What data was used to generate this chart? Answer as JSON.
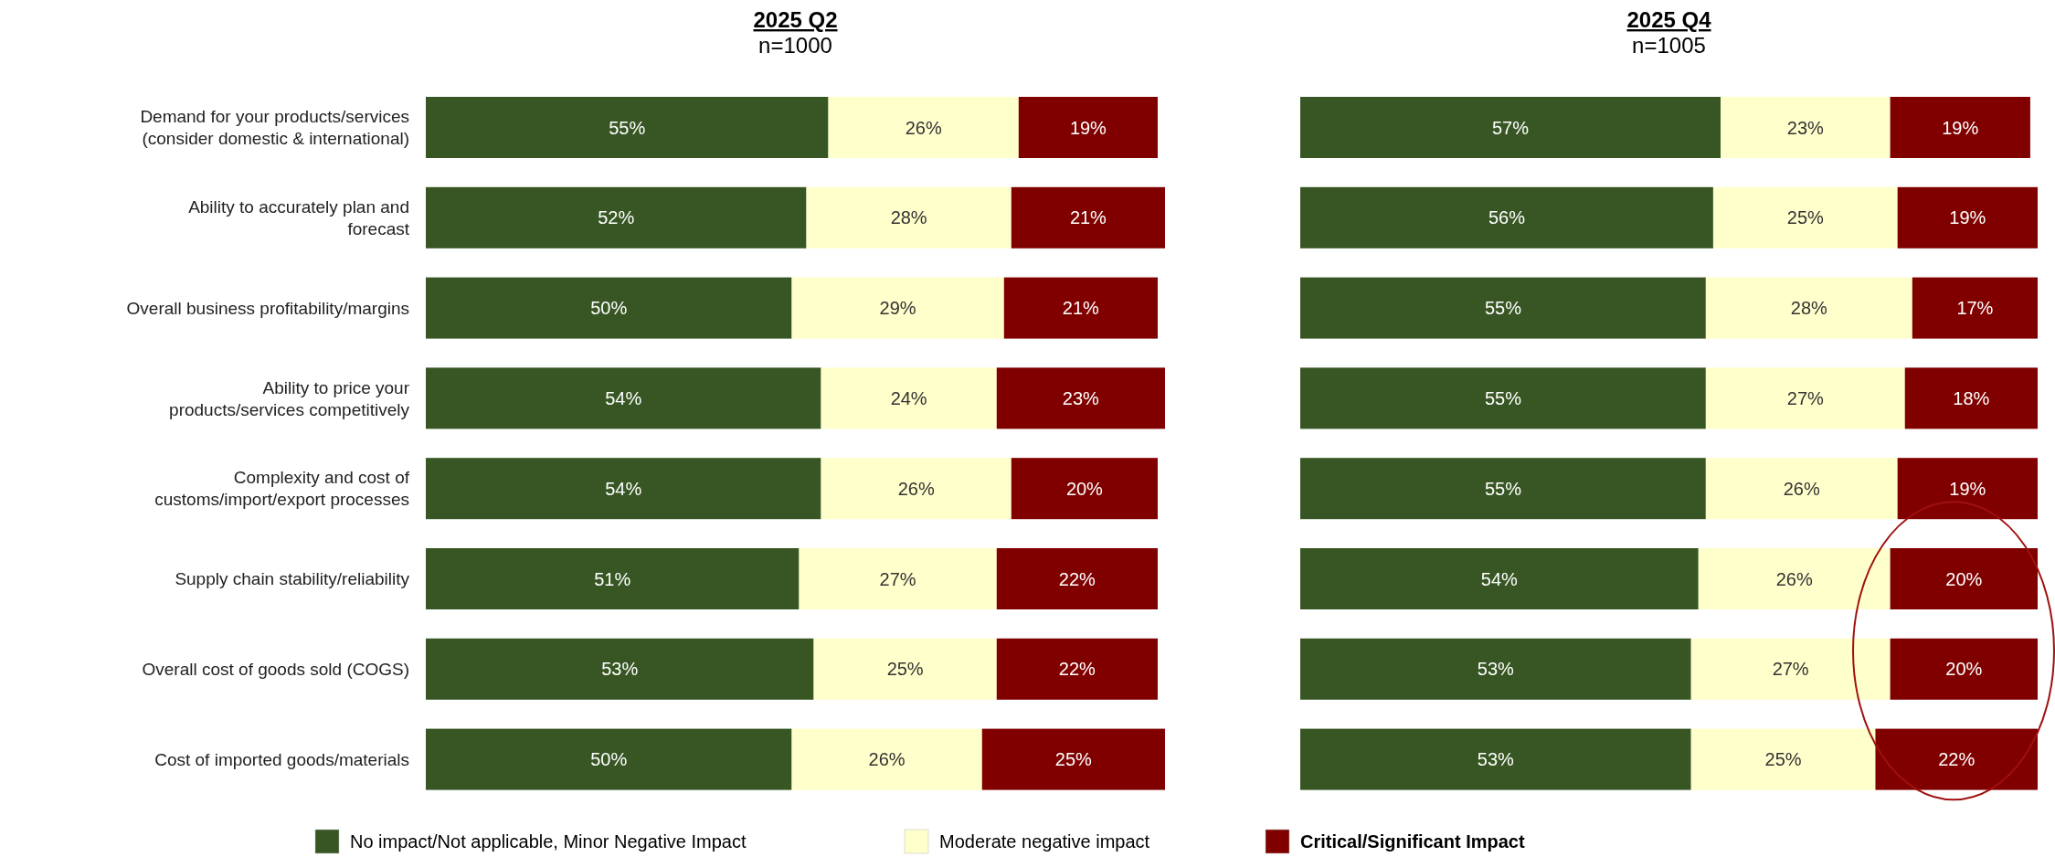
{
  "chart_data": [
    {
      "type": "bar",
      "orientation": "horizontal",
      "stacked": true,
      "title": "2025 Q2",
      "subtitle": "n=1000",
      "legend": "bottom",
      "categories": [
        "Demand for your products/services (consider domestic & international)",
        "Ability to accurately plan and forecast",
        "Overall business profitability/margins",
        "Ability to price your products/services competitively",
        "Complexity and cost of customs/import/export processes",
        "Supply chain stability/reliability",
        "Overall cost of goods sold (COGS)",
        "Cost of imported goods/materials"
      ],
      "series": [
        {
          "name": "No impact/Not applicable, Minor Negative Impact",
          "color": "#375623",
          "values": [
            55,
            52,
            50,
            54,
            54,
            51,
            53,
            50
          ],
          "value_labels": [
            "55%",
            "52%",
            "50%",
            "54%",
            "54%",
            "51%",
            "53%",
            "50%"
          ]
        },
        {
          "name": "Moderate negative impact",
          "color": "#ffffcc",
          "values": [
            26,
            28,
            29,
            24,
            26,
            27,
            25,
            26
          ],
          "value_labels": [
            "26%",
            "28%",
            "29%",
            "24%",
            "26%",
            "27%",
            "25%",
            "26%"
          ]
        },
        {
          "name": "Critical/Significant Impact",
          "color": "#800000",
          "values": [
            19,
            21,
            21,
            23,
            20,
            22,
            22,
            25
          ],
          "value_labels": [
            "19%",
            "21%",
            "21%",
            "23%",
            "20%",
            "22%",
            "22%",
            "25%"
          ]
        }
      ]
    },
    {
      "type": "bar",
      "orientation": "horizontal",
      "stacked": true,
      "title": "2025 Q4",
      "subtitle": "n=1005",
      "categories": [
        null,
        null,
        null,
        null,
        null,
        null,
        null,
        null
      ],
      "series": [
        {
          "color": "#375623",
          "values": [
            57,
            56,
            55,
            55,
            55,
            54,
            53,
            53
          ],
          "value_labels": [
            "57%",
            "56%",
            "55%",
            "55%",
            "55%",
            "54%",
            "53%",
            "53%"
          ]
        },
        {
          "color": "#ffffcc",
          "values": [
            23,
            25,
            28,
            27,
            26,
            26,
            27,
            25
          ],
          "value_labels": [
            "23%",
            "25%",
            "28%",
            "27%",
            "26%",
            "26%",
            "27%",
            "25%"
          ]
        },
        {
          "color": "#800000",
          "values": [
            19,
            19,
            17,
            18,
            19,
            20,
            20,
            22
          ],
          "value_labels": [
            "19%",
            "19%",
            "17%",
            "18%",
            "19%",
            "20%",
            "20%",
            "22%"
          ]
        }
      ]
    }
  ]
}
